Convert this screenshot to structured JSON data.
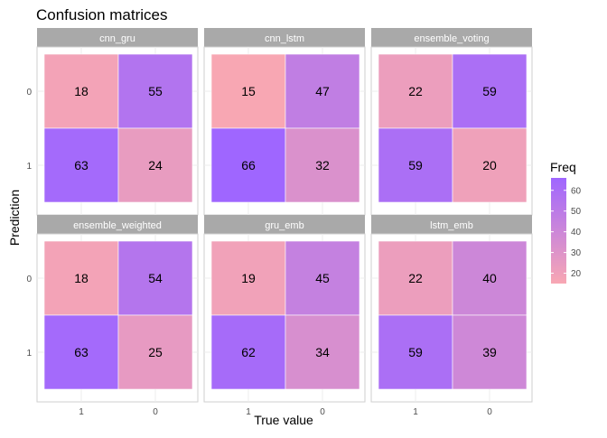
{
  "chart_data": {
    "type": "heatmap",
    "title": "Confusion matrices",
    "xlabel": "True value",
    "ylabel": "Prediction",
    "x_categories": [
      "1",
      "0"
    ],
    "y_categories": [
      "0",
      "1"
    ],
    "legend": {
      "title": "Freq",
      "position": "right",
      "ticks": [
        20,
        30,
        40,
        50,
        60
      ],
      "range": [
        15,
        66
      ],
      "color_low": "#f8a7b3",
      "color_high": "#9f66ff"
    },
    "panels": [
      {
        "name": "cnn_gru",
        "cells": [
          [
            18,
            55
          ],
          [
            63,
            24
          ]
        ]
      },
      {
        "name": "cnn_lstm",
        "cells": [
          [
            15,
            47
          ],
          [
            66,
            32
          ]
        ]
      },
      {
        "name": "ensemble_voting",
        "cells": [
          [
            22,
            59
          ],
          [
            59,
            20
          ]
        ]
      },
      {
        "name": "ensemble_weighted",
        "cells": [
          [
            18,
            54
          ],
          [
            63,
            25
          ]
        ]
      },
      {
        "name": "gru_emb",
        "cells": [
          [
            19,
            45
          ],
          [
            62,
            34
          ]
        ]
      },
      {
        "name": "lstm_emb",
        "cells": [
          [
            22,
            40
          ],
          [
            59,
            39
          ]
        ]
      }
    ]
  }
}
